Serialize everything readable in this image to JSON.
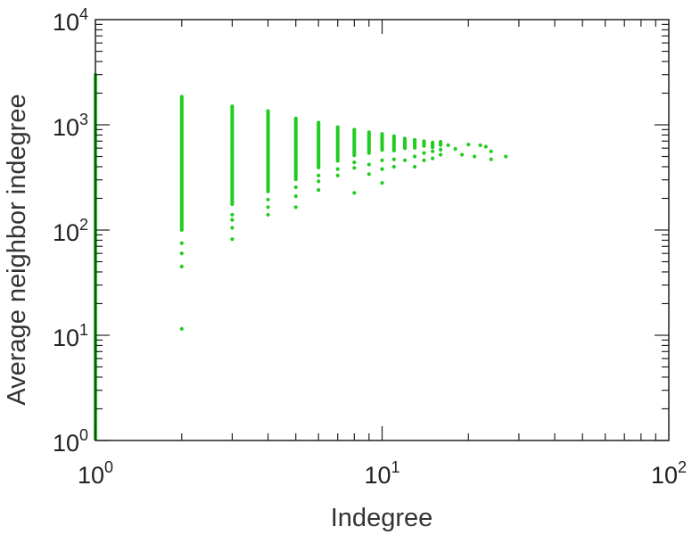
{
  "chart_data": {
    "type": "scatter",
    "title": "",
    "xlabel": "Indegree",
    "ylabel": "Average neighbor indegree",
    "x_scale": "log",
    "y_scale": "log",
    "xlim": [
      1,
      100
    ],
    "ylim": [
      1,
      10000
    ],
    "grid": false,
    "point_color": "#22cc22",
    "x_ticks": [
      {
        "base": "10",
        "exp": "0",
        "value": 1
      },
      {
        "base": "10",
        "exp": "1",
        "value": 10
      },
      {
        "base": "10",
        "exp": "2",
        "value": 100
      }
    ],
    "y_ticks": [
      {
        "base": "10",
        "exp": "0",
        "value": 1
      },
      {
        "base": "10",
        "exp": "1",
        "value": 10
      },
      {
        "base": "10",
        "exp": "2",
        "value": 100
      },
      {
        "base": "10",
        "exp": "3",
        "value": 1000
      },
      {
        "base": "10",
        "exp": "4",
        "value": 10000
      }
    ],
    "series": [
      {
        "columns": [
          {
            "x": 1,
            "ymin": 1,
            "ymax": 3000,
            "samples": [
              1.5,
              2.5,
              5,
              9,
              14,
              20,
              25,
              30,
              40,
              60,
              90,
              150,
              250,
              400,
              600,
              900,
              1300,
              1800,
              2600
            ]
          },
          {
            "x": 2,
            "ymin": 100,
            "ymax": 1850,
            "samples": [
              11.5,
              45,
              60,
              75
            ]
          },
          {
            "x": 3,
            "ymin": 170,
            "ymax": 1500,
            "samples": [
              82,
              105,
              125,
              140
            ]
          },
          {
            "x": 4,
            "ymin": 230,
            "ymax": 1350,
            "samples": [
              140,
              165,
              195
            ]
          },
          {
            "x": 5,
            "ymin": 300,
            "ymax": 1150,
            "samples": [
              165,
              210,
              255
            ]
          },
          {
            "x": 6,
            "ymin": 380,
            "ymax": 1050,
            "samples": [
              240,
              290,
              330
            ]
          },
          {
            "x": 7,
            "ymin": 450,
            "ymax": 950,
            "samples": [
              330,
              380
            ]
          },
          {
            "x": 8,
            "ymin": 500,
            "ymax": 900,
            "samples": [
              225,
              390,
              440
            ]
          },
          {
            "x": 9,
            "ymin": 520,
            "ymax": 850,
            "samples": [
              340,
              420
            ]
          },
          {
            "x": 10,
            "ymin": 560,
            "ymax": 820,
            "samples": [
              280,
              380,
              460
            ]
          },
          {
            "x": 11,
            "ymin": 560,
            "ymax": 780,
            "samples": [
              400,
              470
            ]
          },
          {
            "x": 12,
            "ymin": 580,
            "ymax": 740,
            "samples": [
              460
            ]
          },
          {
            "x": 13,
            "ymin": 600,
            "ymax": 720,
            "samples": [
              400,
              500
            ]
          },
          {
            "x": 14,
            "ymin": 620,
            "ymax": 700,
            "samples": [
              460,
              540
            ]
          },
          {
            "x": 15,
            "ymin": 600,
            "ymax": 680,
            "samples": [
              480,
              560
            ]
          },
          {
            "x": 16,
            "ymin": 630,
            "ymax": 690,
            "samples": [
              580
            ]
          }
        ],
        "points": [
          [
            17,
            640
          ],
          [
            18,
            590
          ],
          [
            19,
            520
          ],
          [
            20,
            650
          ],
          [
            21,
            500
          ],
          [
            22,
            640
          ],
          [
            23,
            620
          ],
          [
            24,
            560
          ],
          [
            24,
            470
          ],
          [
            27,
            500
          ],
          [
            16,
            520
          ]
        ]
      }
    ]
  }
}
